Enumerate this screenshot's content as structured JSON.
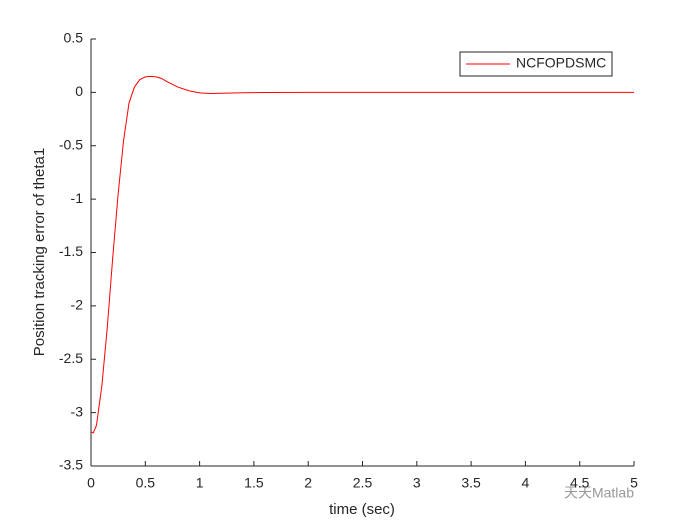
{
  "chart_data": {
    "type": "line",
    "xlabel": "time (sec)",
    "ylabel": "Position tracking error of theta1",
    "x": [
      0,
      0.02,
      0.05,
      0.1,
      0.15,
      0.2,
      0.25,
      0.3,
      0.35,
      0.4,
      0.45,
      0.5,
      0.55,
      0.6,
      0.65,
      0.7,
      0.8,
      0.9,
      1.0,
      1.1,
      1.2,
      1.4,
      1.6,
      2,
      3,
      4,
      5
    ],
    "series": [
      {
        "name": "NCFOPDSMC",
        "color": "#ff0000",
        "values": [
          -3.18,
          -3.19,
          -3.12,
          -2.75,
          -2.2,
          -1.55,
          -0.95,
          -0.45,
          -0.1,
          0.05,
          0.12,
          0.145,
          0.15,
          0.145,
          0.13,
          0.1,
          0.05,
          0.015,
          -0.005,
          -0.01,
          -0.008,
          -0.004,
          -0.001,
          0,
          0,
          0,
          0
        ]
      }
    ],
    "xlim": [
      0,
      5
    ],
    "xticks": [
      0,
      0.5,
      1,
      1.5,
      2,
      2.5,
      3,
      3.5,
      4,
      4.5,
      5
    ],
    "ylim": [
      -3.5,
      0.5
    ],
    "yticks": [
      -3.5,
      -3,
      -2.5,
      -2,
      -1.5,
      -1,
      -0.5,
      0,
      0.5
    ],
    "grid": false,
    "legend": "northeast",
    "watermark": "天天Matlab"
  }
}
